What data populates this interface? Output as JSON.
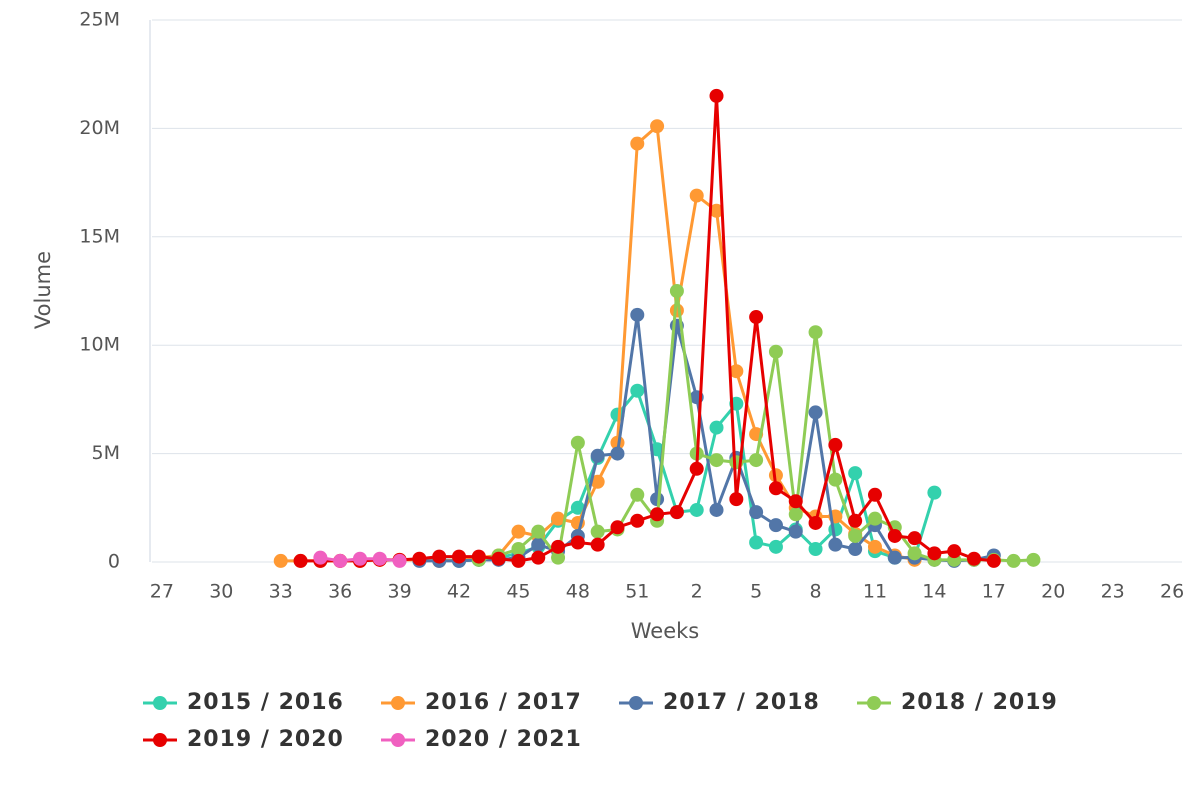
{
  "chart_data": {
    "type": "line",
    "x_label": "Weeks",
    "y_label": "Volume",
    "categories": [
      "27",
      null,
      null,
      "30",
      null,
      null,
      "33",
      null,
      null,
      "36",
      null,
      null,
      "39",
      null,
      null,
      "42",
      null,
      null,
      "45",
      null,
      null,
      "48",
      null,
      null,
      "51",
      null,
      null,
      "2",
      null,
      null,
      "5",
      null,
      null,
      "8",
      null,
      null,
      "11",
      null,
      null,
      "14",
      null,
      null,
      "17",
      null,
      null,
      "20",
      null,
      null,
      "23",
      null,
      null,
      "26"
    ],
    "ylim": [
      0,
      25000000
    ],
    "yticks": [
      0,
      {
        "value": 5000000,
        "label": "5M"
      },
      {
        "value": 10000000,
        "label": "10M"
      },
      {
        "value": 15000000,
        "label": "15M"
      },
      {
        "value": 20000000,
        "label": "20M"
      },
      {
        "value": 25000000,
        "label": "25M"
      }
    ],
    "grid": true,
    "legend": "bottom",
    "series": [
      {
        "name": "2015 / 2016",
        "color": "#33d1ad",
        "values": [
          null,
          null,
          null,
          null,
          null,
          null,
          null,
          null,
          null,
          null,
          null,
          null,
          null,
          100000,
          100000,
          50000,
          100000,
          200000,
          400000,
          700000,
          1900000,
          2500000,
          4800000,
          6800000,
          7900000,
          5200000,
          2300000,
          2400000,
          6200000,
          7300000,
          900000,
          700000,
          1500000,
          600000,
          1500000,
          4100000,
          500000,
          200000,
          200000,
          3200000,
          null,
          null,
          null,
          null,
          null,
          null,
          null,
          null,
          null,
          null,
          null,
          null
        ]
      },
      {
        "name": "2016 / 2017",
        "color": "#ff9933",
        "values": [
          null,
          null,
          null,
          null,
          null,
          null,
          50000,
          50000,
          50000,
          50000,
          50000,
          100000,
          100000,
          100000,
          50000,
          100000,
          200000,
          300000,
          1400000,
          1200000,
          2000000,
          1800000,
          3700000,
          5500000,
          19300000,
          20100000,
          11600000,
          16900000,
          16200000,
          8800000,
          5900000,
          4000000,
          2500000,
          2100000,
          2100000,
          1300000,
          700000,
          300000,
          100000,
          null,
          null,
          null,
          null,
          null,
          null,
          null,
          null,
          null,
          null,
          null,
          null,
          null
        ]
      },
      {
        "name": "2017 / 2018",
        "color": "#5276a8",
        "values": [
          null,
          null,
          null,
          null,
          null,
          null,
          null,
          null,
          null,
          null,
          null,
          null,
          null,
          50000,
          50000,
          50000,
          100000,
          100000,
          200000,
          800000,
          500000,
          1200000,
          4900000,
          5000000,
          11400000,
          2900000,
          10900000,
          7600000,
          2400000,
          4800000,
          2300000,
          1700000,
          1400000,
          6900000,
          800000,
          600000,
          1700000,
          200000,
          200000,
          100000,
          50000,
          100000,
          300000,
          null,
          null,
          null,
          null,
          null,
          null,
          null,
          null,
          null
        ]
      },
      {
        "name": "2018 / 2019",
        "color": "#8fcc55",
        "values": [
          null,
          null,
          null,
          null,
          null,
          null,
          null,
          null,
          null,
          null,
          null,
          null,
          null,
          null,
          null,
          null,
          100000,
          300000,
          600000,
          1400000,
          200000,
          5500000,
          1400000,
          1500000,
          3100000,
          1900000,
          12500000,
          5000000,
          4700000,
          4600000,
          4700000,
          9700000,
          2200000,
          10600000,
          3800000,
          1200000,
          2000000,
          1600000,
          400000,
          100000,
          100000,
          100000,
          100000,
          50000,
          100000,
          null,
          null,
          null,
          null,
          null,
          null,
          null
        ]
      },
      {
        "name": "2019 / 2020",
        "color": "#e60000",
        "values": [
          null,
          null,
          null,
          null,
          null,
          null,
          null,
          50000,
          50000,
          50000,
          50000,
          100000,
          100000,
          150000,
          250000,
          250000,
          250000,
          150000,
          50000,
          200000,
          700000,
          900000,
          800000,
          1600000,
          1900000,
          2200000,
          2300000,
          4300000,
          21500000,
          2900000,
          11300000,
          3400000,
          2800000,
          1800000,
          5400000,
          1900000,
          3100000,
          1200000,
          1100000,
          400000,
          500000,
          150000,
          50000,
          null,
          null,
          null,
          null,
          null,
          null,
          null,
          null,
          null
        ]
      },
      {
        "name": "2020 / 2021",
        "color": "#f060c0",
        "values": [
          null,
          null,
          null,
          null,
          null,
          null,
          null,
          null,
          200000,
          50000,
          150000,
          150000,
          50000,
          null,
          null,
          null,
          null,
          null,
          null,
          null,
          null,
          null,
          null,
          null,
          null,
          null,
          null,
          null,
          null,
          null,
          null,
          null,
          null,
          null,
          null,
          null,
          null,
          null,
          null,
          null,
          null,
          null,
          null,
          null,
          null,
          null,
          null,
          null,
          null,
          null,
          null,
          null
        ]
      }
    ]
  }
}
